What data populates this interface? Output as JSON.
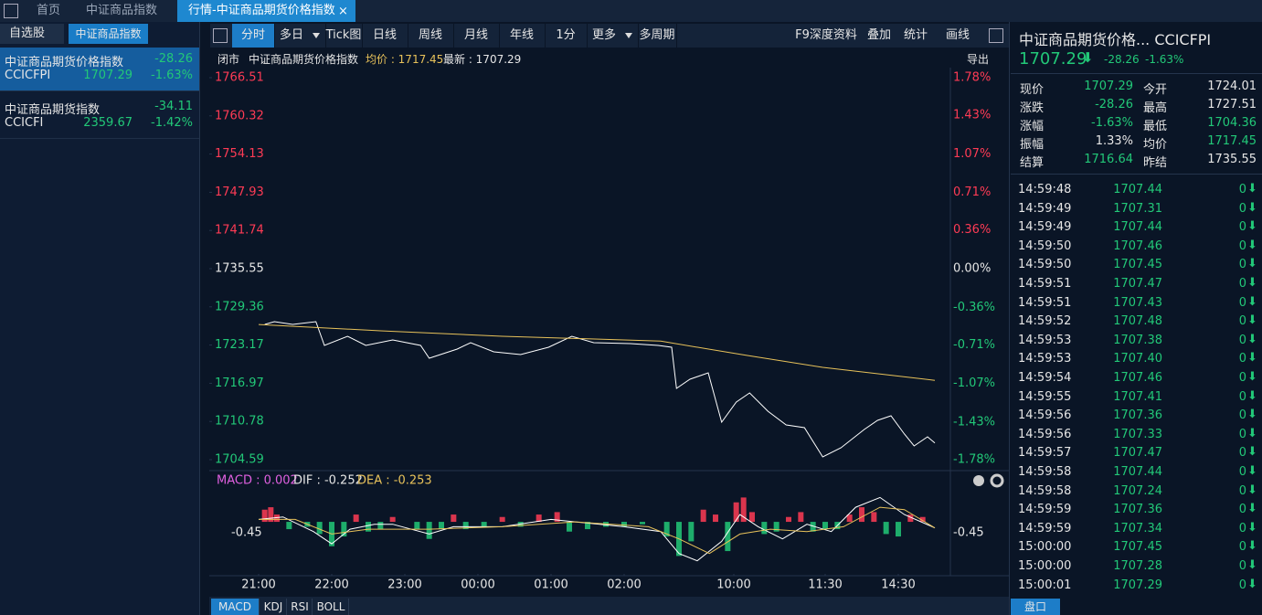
{
  "tabs": [
    "首页",
    "中证商品指数",
    "行情-中证商品期货价格指数"
  ],
  "sidebar": {
    "tabs": [
      "自选股",
      "中证商品指数"
    ],
    "items": [
      {
        "name": "中证商品期货价格指数",
        "change": "-28.26",
        "code": "CCICFPI",
        "price": "1707.29",
        "pct": "-1.63%"
      },
      {
        "name": "中证商品期货指数",
        "change": "-34.11",
        "code": "CCICFI",
        "price": "2359.67",
        "pct": "-1.42%"
      }
    ]
  },
  "toolbar": {
    "left": [
      "分时",
      "多日",
      "Tick图",
      "日线",
      "周线",
      "月线",
      "年线",
      "1分",
      "更多",
      "多周期"
    ],
    "right": [
      "F9深度资料",
      "叠加",
      "统计",
      "画线"
    ]
  },
  "info": {
    "status": "闭市",
    "name": "中证商品期货价格指数",
    "avg": "均价 : 1717.45",
    "last": "最新 : 1707.29",
    "export": "导出"
  },
  "macd_header": {
    "macd": "MACD : 0.002",
    "dif": "DIF : -0.252",
    "dea": "DEA : -0.253"
  },
  "indicator_tabs": [
    "MACD",
    "KDJ",
    "RSI",
    "BOLL"
  ],
  "quote": {
    "title": "中证商品期货价格... CCICFPI",
    "price": "1707.29",
    "change": "-28.26",
    "pct": "-1.63%",
    "rows": [
      [
        "现价",
        "1707.29",
        "今开",
        "1724.01"
      ],
      [
        "涨跌",
        "-28.26",
        "最高",
        "1727.51"
      ],
      [
        "涨幅",
        "-1.63%",
        "最低",
        "1704.36"
      ],
      [
        "振幅",
        "1.33%",
        "均价",
        "1717.45"
      ],
      [
        "结算",
        "1716.64",
        "昨结",
        "1735.55"
      ]
    ],
    "ticks": [
      [
        "14:59:48",
        "1707.44",
        "0"
      ],
      [
        "14:59:49",
        "1707.31",
        "0"
      ],
      [
        "14:59:49",
        "1707.44",
        "0"
      ],
      [
        "14:59:50",
        "1707.46",
        "0"
      ],
      [
        "14:59:50",
        "1707.45",
        "0"
      ],
      [
        "14:59:51",
        "1707.47",
        "0"
      ],
      [
        "14:59:51",
        "1707.43",
        "0"
      ],
      [
        "14:59:52",
        "1707.48",
        "0"
      ],
      [
        "14:59:53",
        "1707.38",
        "0"
      ],
      [
        "14:59:53",
        "1707.40",
        "0"
      ],
      [
        "14:59:54",
        "1707.46",
        "0"
      ],
      [
        "14:59:55",
        "1707.41",
        "0"
      ],
      [
        "14:59:56",
        "1707.36",
        "0"
      ],
      [
        "14:59:56",
        "1707.33",
        "0"
      ],
      [
        "14:59:57",
        "1707.47",
        "0"
      ],
      [
        "14:59:58",
        "1707.44",
        "0"
      ],
      [
        "14:59:58",
        "1707.24",
        "0"
      ],
      [
        "14:59:59",
        "1707.36",
        "0"
      ],
      [
        "14:59:59",
        "1707.34",
        "0"
      ],
      [
        "15:00:00",
        "1707.45",
        "0"
      ],
      [
        "15:00:00",
        "1707.28",
        "0"
      ],
      [
        "15:00:01",
        "1707.29",
        "0"
      ]
    ],
    "tab": "盘口"
  },
  "chart_data": [
    {
      "type": "line",
      "xlim": [
        0,
        555
      ],
      "xticks": [
        {
          "value": 0,
          "label": "21:00"
        },
        {
          "value": 60,
          "label": "22:00"
        },
        {
          "value": 120,
          "label": "23:00"
        },
        {
          "value": 180,
          "label": "00:00"
        },
        {
          "value": 240,
          "label": "01:00"
        },
        {
          "value": 300,
          "label": "02:00"
        },
        {
          "value": 390,
          "label": "10:00"
        },
        {
          "value": 465,
          "label": "11:30"
        },
        {
          "value": 525,
          "label": "14:30"
        }
      ],
      "ylim": [
        1704.59,
        1766.51
      ],
      "yticks": [
        1766.51,
        1760.32,
        1754.13,
        1747.93,
        1741.74,
        1735.55,
        1729.36,
        1723.17,
        1716.97,
        1710.78,
        1704.59
      ],
      "y2lim": [
        -1.78,
        1.78
      ],
      "y2ticks": [
        {
          "value": 1.78,
          "label": "1.78%"
        },
        {
          "value": 1.43,
          "label": "1.43%"
        },
        {
          "value": 1.07,
          "label": "1.07%"
        },
        {
          "value": 0.71,
          "label": "0.71%"
        },
        {
          "value": 0.36,
          "label": "0.36%"
        },
        {
          "value": 0,
          "label": "0.00%"
        },
        {
          "value": -0.36,
          "label": "-0.36%"
        },
        {
          "value": -0.71,
          "label": "-0.71%"
        },
        {
          "value": -1.07,
          "label": "-1.07%"
        },
        {
          "value": -1.43,
          "label": "-1.43%"
        },
        {
          "value": -1.78,
          "label": "-1.78%"
        }
      ],
      "up_color": "#ff3b55",
      "down_color": "#22c878",
      "flat_color": "#e6e6e6",
      "series": [
        {
          "color": "#ffffff",
          "x": [
            5,
            13,
            28,
            47,
            54,
            73,
            88,
            110,
            133,
            140,
            163,
            174,
            193,
            215,
            238,
            257,
            275,
            305,
            328,
            339,
            343,
            354,
            369,
            380,
            392,
            403,
            418,
            433,
            448,
            463,
            478,
            497,
            508,
            519,
            530,
            538,
            549,
            555
          ],
          "values": [
            1726.52,
            1726.96,
            1726.52,
            1726.96,
            1723.11,
            1724.59,
            1723.11,
            1724.0,
            1723.11,
            1721.03,
            1722.52,
            1723.55,
            1722.07,
            1721.63,
            1722.81,
            1724.59,
            1723.55,
            1723.4,
            1723.11,
            1722.81,
            1716.15,
            1717.63,
            1718.66,
            1710.66,
            1713.92,
            1715.41,
            1712.44,
            1710.22,
            1709.78,
            1705.04,
            1706.52,
            1709.48,
            1710.96,
            1711.7,
            1708.74,
            1706.81,
            1708.29,
            1707.29
          ]
        },
        {
          "color": "#e8c25a",
          "x": [
            0,
            100,
            200,
            300,
            330,
            400,
            463,
            555
          ],
          "values": [
            1726.5,
            1725.47,
            1724.59,
            1724.0,
            1723.8,
            1721.5,
            1719.55,
            1717.45
          ]
        }
      ]
    },
    {
      "type": "macd",
      "xlim": [
        0,
        555
      ],
      "ylim": [
        -2.15,
        1.15
      ],
      "yticks": [
        -0.45
      ],
      "histogram": {
        "up_color": "#ff3b55",
        "down_color": "#22c878",
        "x": [
          5,
          10,
          15,
          25,
          40,
          50,
          60,
          70,
          80,
          90,
          100,
          110,
          130,
          140,
          150,
          160,
          170,
          185,
          200,
          215,
          230,
          245,
          255,
          270,
          285,
          300,
          315,
          335,
          345,
          355,
          365,
          375,
          385,
          392,
          398,
          405,
          415,
          425,
          435,
          445,
          455,
          465,
          475,
          485,
          495,
          505,
          515,
          525,
          535,
          545
        ],
        "values": [
          0.5,
          0.6,
          0.3,
          -0.3,
          -0.2,
          -0.5,
          -1.0,
          -0.6,
          0.3,
          -0.4,
          -0.3,
          0.2,
          -0.3,
          -0.7,
          -0.3,
          0.3,
          -0.3,
          -0.2,
          0.2,
          -0.2,
          0.3,
          0.4,
          -0.4,
          -0.3,
          -0.2,
          -0.2,
          -0.1,
          -0.6,
          -1.4,
          -0.8,
          0.5,
          0.3,
          -1.2,
          0.8,
          1.0,
          0.4,
          -0.5,
          -0.4,
          0.2,
          0.4,
          -0.4,
          -0.3,
          -0.3,
          0.3,
          0.6,
          0.4,
          -0.5,
          -0.6,
          0.3,
          0.2
        ]
      },
      "series": [
        {
          "color": "#ffffff",
          "x": [
            0,
            20,
            45,
            60,
            75,
            95,
            110,
            140,
            160,
            200,
            240,
            260,
            300,
            330,
            345,
            360,
            380,
            395,
            410,
            430,
            450,
            470,
            490,
            510,
            530,
            555
          ],
          "values": [
            0.1,
            0.2,
            -0.4,
            -0.9,
            -0.3,
            -0.1,
            -0.1,
            -0.5,
            -0.2,
            -0.2,
            0.1,
            0.0,
            -0.2,
            -0.4,
            -1.3,
            -1.6,
            -0.8,
            0.3,
            -0.2,
            -0.7,
            -0.1,
            -0.4,
            0.6,
            1.0,
            0.3,
            -0.25
          ]
        },
        {
          "color": "#e8c25a",
          "x": [
            0,
            30,
            60,
            90,
            140,
            200,
            260,
            320,
            345,
            370,
            395,
            420,
            450,
            480,
            510,
            530,
            555
          ],
          "values": [
            0.1,
            0.1,
            -0.5,
            -0.3,
            -0.3,
            -0.2,
            0.0,
            -0.2,
            -0.7,
            -1.3,
            -0.5,
            -0.3,
            -0.4,
            -0.2,
            0.6,
            0.5,
            -0.25
          ]
        }
      ]
    }
  ]
}
